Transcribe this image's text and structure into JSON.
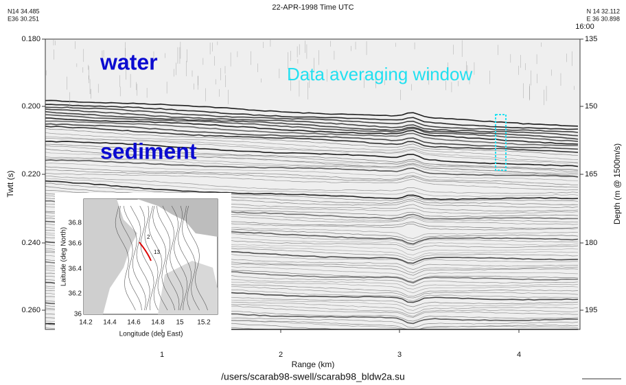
{
  "figure": {
    "title": "22-APR-1998   Time UTC",
    "start_position": [
      "N14 34.485",
      "E36 30.251"
    ],
    "end_position": [
      "N 14 32.112",
      "E 36 30.898"
    ],
    "end_time": "16:00",
    "annotations": {
      "water": "water",
      "sediment": "sediment",
      "window": "Data averaging window"
    },
    "left_axis": {
      "label": "Twtt (s)",
      "ticks": [
        "0.180",
        "0.200",
        "0.220",
        "0.240",
        "0.260"
      ]
    },
    "right_axis": {
      "label": "Depth (m @ 1500m/s)",
      "ticks": [
        "135",
        "150",
        "165",
        "180",
        "195"
      ]
    },
    "bottom_axis": {
      "label": "Range (km)",
      "ticks": [
        "1",
        "2",
        "3",
        "4"
      ]
    },
    "file": "/users/scarab98-swell/scarab98_bldw2a.su",
    "inset": {
      "y_label": "Laitude (deg North)",
      "x_label": "Longitude (deg East)",
      "y_ticks": [
        "36.8",
        "36.6",
        "36.4",
        "36.2",
        "36"
      ],
      "x_ticks": [
        "14.2",
        "14.4",
        "14.6",
        "14.8",
        "15",
        "15.2"
      ],
      "track_labels": [
        "2",
        "13"
      ]
    }
  }
}
